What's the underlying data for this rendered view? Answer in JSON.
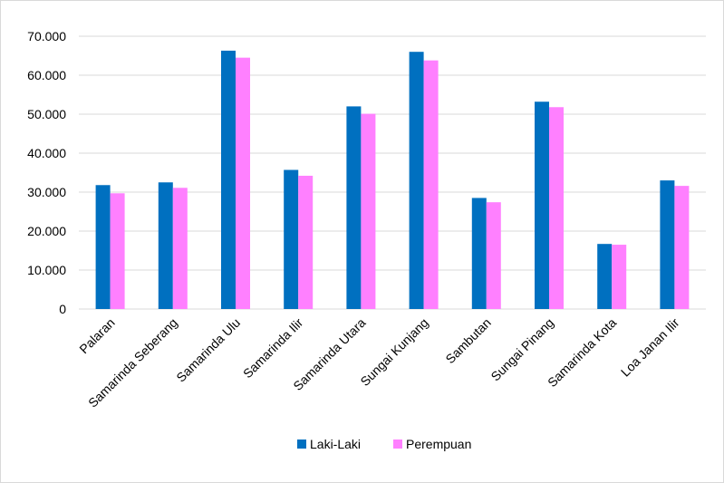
{
  "chart_data": {
    "type": "bar",
    "title": "",
    "xlabel": "",
    "ylabel": "",
    "categories": [
      "Palaran",
      "Samarinda Seberang",
      "Samarinda Ulu",
      "Samarinda Ilir",
      "Samarinda Utara",
      "Sungai Kunjang",
      "Sambutan",
      "Sungai Pinang",
      "Samarinda Kota",
      "Loa Janan Ilir"
    ],
    "series": [
      {
        "name": "Laki-Laki",
        "color": "#0070c0",
        "values": [
          31800,
          32500,
          66300,
          35700,
          52000,
          66000,
          28500,
          53200,
          16700,
          33000
        ]
      },
      {
        "name": "Perempuan",
        "color": "#ff80ff",
        "values": [
          29700,
          31100,
          64500,
          34200,
          50100,
          63800,
          27400,
          51800,
          16500,
          31600
        ]
      }
    ],
    "ylim": [
      0,
      70000
    ],
    "yticks": [
      0,
      10000,
      20000,
      30000,
      40000,
      50000,
      60000,
      70000
    ],
    "ytick_labels": [
      "0",
      "10.000",
      "20.000",
      "30.000",
      "40.000",
      "50.000",
      "60.000",
      "70.000"
    ],
    "grid": true,
    "legend": "bottom"
  }
}
